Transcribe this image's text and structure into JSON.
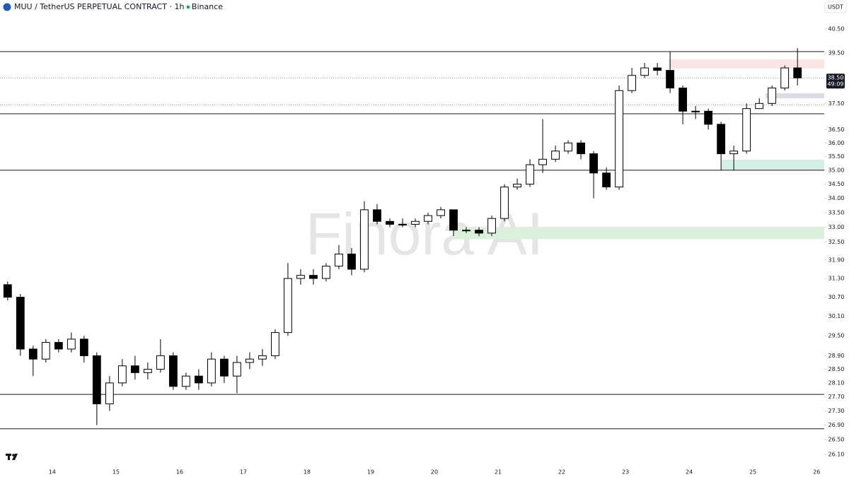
{
  "chart_data": {
    "type": "candlestick",
    "title": "MUU / TetherUS PERPETUAL CONTRACT · 1h · Binance",
    "currency": "USDT",
    "watermark": "Finora AI",
    "log_scale": true,
    "xlim": [
      13.18,
      26.12
    ],
    "xticks": [
      14,
      15,
      16,
      17,
      18,
      19,
      20,
      21,
      22,
      23,
      24,
      25,
      26
    ],
    "ylim": [
      25.78,
      41.12
    ],
    "yticks": [
      {
        "value": 40.5,
        "label": "40.50"
      },
      {
        "value": 39.5,
        "label": "39.50"
      },
      {
        "value": 37.5,
        "label": "37.50"
      },
      {
        "value": 36.5,
        "label": "36.50"
      },
      {
        "value": 36,
        "label": "36.00"
      },
      {
        "value": 35.5,
        "label": "35.50"
      },
      {
        "value": 35,
        "label": "35.00"
      },
      {
        "value": 34.5,
        "label": "34.50"
      },
      {
        "value": 34,
        "label": "34.00"
      },
      {
        "value": 33.5,
        "label": "33.50"
      },
      {
        "value": 33,
        "label": "33.00"
      },
      {
        "value": 32.5,
        "label": "32.50"
      },
      {
        "value": 31.9,
        "label": "31.90"
      },
      {
        "value": 31.3,
        "label": "31.30"
      },
      {
        "value": 30.7,
        "label": "30.70"
      },
      {
        "value": 30.1,
        "label": "30.10"
      },
      {
        "value": 29.5,
        "label": "29.50"
      },
      {
        "value": 28.9,
        "label": "28.90"
      },
      {
        "value": 28.5,
        "label": "28.50"
      },
      {
        "value": 28.1,
        "label": "28.10"
      },
      {
        "value": 27.7,
        "label": "27.70"
      },
      {
        "value": 27.3,
        "label": "27.30"
      },
      {
        "value": 26.9,
        "label": "26.90"
      },
      {
        "value": 26.5,
        "label": "26.50"
      },
      {
        "value": 26.1,
        "label": "26.10"
      }
    ],
    "up_color": "#ffffff",
    "down_color": "#000000",
    "wick_color": "#000000",
    "x": [
      13.3,
      13.5,
      13.7,
      13.9,
      14.1,
      14.3,
      14.5,
      14.7,
      14.9,
      15.1,
      15.3,
      15.5,
      15.7,
      15.9,
      16.1,
      16.3,
      16.5,
      16.7,
      16.9,
      17.1,
      17.3,
      17.5,
      17.7,
      17.9,
      18.1,
      18.3,
      18.5,
      18.7,
      18.9,
      19.1,
      19.3,
      19.5,
      19.7,
      19.9,
      20.1,
      20.3,
      20.5,
      20.7,
      20.9,
      21.1,
      21.3,
      21.5,
      21.7,
      21.9,
      22.1,
      22.3,
      22.5,
      22.7,
      22.9,
      23.1,
      23.3,
      23.5,
      23.7,
      23.9,
      24.1,
      24.3,
      24.5,
      24.7,
      24.9,
      25.1,
      25.3,
      25.5,
      25.7
    ],
    "open": [
      31.1,
      30.7,
      29.1,
      28.8,
      29.3,
      29.1,
      29.4,
      28.9,
      27.5,
      28.1,
      28.6,
      28.4,
      28.5,
      28.9,
      28.0,
      28.3,
      28.1,
      28.8,
      28.3,
      28.7,
      28.8,
      28.9,
      29.6,
      31.3,
      31.4,
      31.3,
      31.7,
      32.1,
      31.6,
      33.6,
      33.2,
      33.1,
      33.1,
      33.2,
      33.4,
      33.6,
      32.9,
      32.9,
      32.8,
      33.3,
      34.4,
      34.5,
      35.2,
      35.4,
      35.7,
      36.0,
      35.6,
      34.9,
      34.4,
      38.0,
      38.6,
      38.9,
      38.8,
      38.1,
      37.2,
      37.2,
      36.7,
      35.6,
      35.7,
      37.3,
      37.5,
      38.1,
      38.9
    ],
    "high": [
      31.2,
      30.8,
      29.2,
      29.4,
      29.4,
      29.6,
      29.5,
      29.0,
      28.3,
      28.8,
      28.9,
      28.7,
      29.4,
      29.0,
      28.4,
      28.5,
      29.0,
      28.9,
      28.9,
      29.0,
      29.1,
      29.7,
      31.8,
      31.6,
      31.6,
      31.8,
      32.4,
      32.3,
      33.9,
      33.8,
      33.3,
      33.3,
      33.3,
      33.5,
      33.7,
      33.6,
      33.0,
      33.0,
      33.4,
      34.5,
      34.7,
      35.4,
      36.9,
      35.9,
      36.1,
      36.1,
      35.7,
      35.1,
      38.2,
      38.9,
      39.1,
      39.1,
      39.55,
      38.2,
      37.4,
      37.3,
      36.8,
      35.9,
      37.5,
      37.7,
      38.2,
      39.0,
      39.7
    ],
    "low": [
      30.6,
      28.9,
      28.3,
      28.7,
      29.0,
      29.0,
      28.7,
      26.9,
      27.3,
      28.0,
      28.2,
      28.2,
      28.4,
      27.9,
      27.9,
      27.9,
      28.0,
      28.1,
      27.8,
      28.5,
      28.6,
      28.8,
      29.5,
      31.1,
      31.1,
      31.2,
      31.6,
      31.4,
      31.5,
      33.1,
      33.0,
      33.0,
      33.0,
      33.1,
      33.3,
      32.7,
      32.8,
      32.7,
      32.7,
      33.2,
      34.3,
      34.4,
      34.9,
      35.3,
      35.6,
      35.4,
      34.0,
      34.3,
      34.3,
      37.9,
      38.5,
      38.6,
      37.9,
      36.7,
      36.9,
      36.5,
      35.0,
      35.0,
      35.6,
      37.3,
      37.4,
      38.0,
      38.2
    ],
    "close": [
      30.7,
      29.1,
      28.8,
      29.3,
      29.1,
      29.4,
      28.9,
      27.5,
      28.1,
      28.6,
      28.4,
      28.5,
      28.9,
      28.0,
      28.3,
      28.1,
      28.8,
      28.3,
      28.7,
      28.8,
      28.9,
      29.6,
      31.3,
      31.4,
      31.3,
      31.7,
      32.1,
      31.6,
      33.6,
      33.2,
      33.1,
      33.1,
      33.2,
      33.4,
      33.6,
      32.9,
      32.9,
      32.8,
      33.3,
      34.4,
      34.5,
      35.2,
      35.4,
      35.7,
      36.0,
      35.6,
      34.9,
      34.4,
      38.0,
      38.6,
      38.9,
      38.8,
      38.1,
      37.2,
      37.2,
      36.7,
      35.6,
      35.7,
      37.3,
      37.5,
      38.1,
      38.9,
      38.5
    ],
    "levels": [
      39.56,
      37.1,
      35.0,
      27.77,
      26.8
    ],
    "dotted_levels": [
      38.5,
      37.44
    ],
    "zones": [
      {
        "x": 23.68,
        "low": 38.87,
        "high": 39.24,
        "color": "#fde4e4"
      },
      {
        "x": 25.2,
        "low": 37.7,
        "high": 37.89,
        "color": "#dcdae3"
      },
      {
        "x": 24.51,
        "low": 35.0,
        "high": 35.38,
        "color": "#d3efe6"
      },
      {
        "x": 20.29,
        "low": 32.6,
        "high": 33.01,
        "color": "#dcf1dc"
      }
    ],
    "last_price": {
      "value": 38.5,
      "label": "38.50"
    },
    "countdown": "49:09"
  }
}
